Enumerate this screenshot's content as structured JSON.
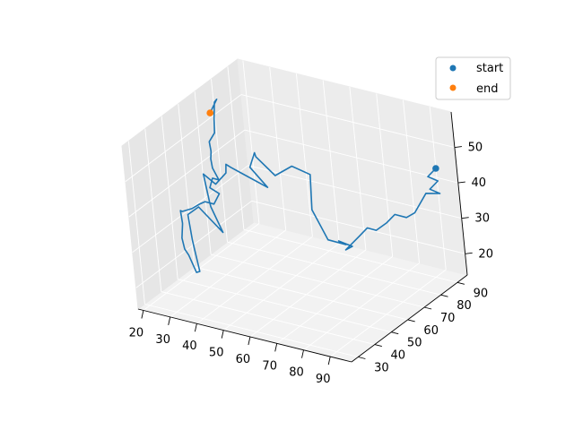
{
  "chart_data": {
    "type": "line3d",
    "title": "",
    "xlabel": "",
    "ylabel": "",
    "zlabel": "",
    "xlim": [
      18,
      98
    ],
    "ylim": [
      26,
      96
    ],
    "zlim": [
      14,
      60
    ],
    "xticks": [
      "20",
      "30",
      "40",
      "50",
      "60",
      "70",
      "80",
      "90"
    ],
    "yticks": [
      "30",
      "40",
      "50",
      "60",
      "70",
      "80",
      "90"
    ],
    "zticks": [
      "20",
      "30",
      "40",
      "50"
    ],
    "grid": true,
    "legend": {
      "placement": "top-right",
      "entries": [
        {
          "label": "start",
          "color": "#1f77b4",
          "marker": "dot"
        },
        {
          "label": "end",
          "color": "#ff7f0e",
          "marker": "dot"
        }
      ]
    },
    "series": [
      {
        "kind": "line",
        "color": "#1f77b4",
        "points": [
          [
            92,
            93,
            44
          ],
          [
            90,
            91,
            42
          ],
          [
            93,
            92,
            41
          ],
          [
            91,
            90,
            39
          ],
          [
            94,
            91,
            38
          ],
          [
            90,
            89,
            38
          ],
          [
            87,
            86,
            33
          ],
          [
            85,
            84,
            32
          ],
          [
            82,
            82,
            33
          ],
          [
            80,
            80,
            31
          ],
          [
            77,
            78,
            29
          ],
          [
            75,
            76,
            30
          ],
          [
            73,
            74,
            28
          ],
          [
            70,
            70,
            25
          ],
          [
            72,
            71,
            26
          ],
          [
            69,
            68,
            28
          ],
          [
            71,
            69,
            27
          ],
          [
            67,
            65,
            29
          ],
          [
            64,
            62,
            38
          ],
          [
            66,
            60,
            49
          ],
          [
            62,
            56,
            52
          ],
          [
            58,
            52,
            50
          ],
          [
            54,
            48,
            56
          ],
          [
            55,
            46,
            58
          ],
          [
            52,
            47,
            53
          ],
          [
            56,
            50,
            47
          ],
          [
            51,
            44,
            52
          ],
          [
            48,
            42,
            54
          ],
          [
            47,
            41,
            55
          ],
          [
            46,
            42,
            52
          ],
          [
            43,
            40,
            49
          ],
          [
            40,
            38,
            52
          ],
          [
            42,
            37,
            45
          ],
          [
            43,
            36,
            44
          ],
          [
            46,
            37,
            37
          ],
          [
            41,
            32,
            45
          ],
          [
            38,
            30,
            43
          ],
          [
            36,
            34,
            34
          ],
          [
            37,
            35,
            25
          ],
          [
            35,
            36,
            24
          ],
          [
            32,
            37,
            28
          ],
          [
            30,
            38,
            29
          ],
          [
            28,
            40,
            31
          ],
          [
            26,
            44,
            33
          ],
          [
            24,
            47,
            32
          ],
          [
            23,
            48,
            35
          ],
          [
            22,
            50,
            34
          ],
          [
            21,
            52,
            33
          ],
          [
            24,
            53,
            34
          ],
          [
            26,
            55,
            35
          ],
          [
            28,
            55,
            36
          ],
          [
            30,
            57,
            35
          ],
          [
            29,
            62,
            36
          ],
          [
            27,
            60,
            38
          ],
          [
            27,
            62,
            40
          ],
          [
            28,
            64,
            39
          ],
          [
            26,
            64,
            42
          ],
          [
            25,
            65,
            44
          ],
          [
            24,
            67,
            45
          ],
          [
            22,
            70,
            44
          ],
          [
            21,
            71,
            46
          ],
          [
            22,
            73,
            48
          ],
          [
            21,
            75,
            51
          ],
          [
            19,
            79,
            54
          ],
          [
            20,
            79,
            55
          ],
          [
            19,
            76,
            52
          ]
        ]
      },
      {
        "kind": "marker",
        "name": "start",
        "color": "#1f77b4",
        "point": [
          92,
          93,
          44
        ]
      },
      {
        "kind": "marker",
        "name": "end",
        "color": "#ff7f0e",
        "point": [
          19,
          76,
          52
        ]
      }
    ]
  }
}
